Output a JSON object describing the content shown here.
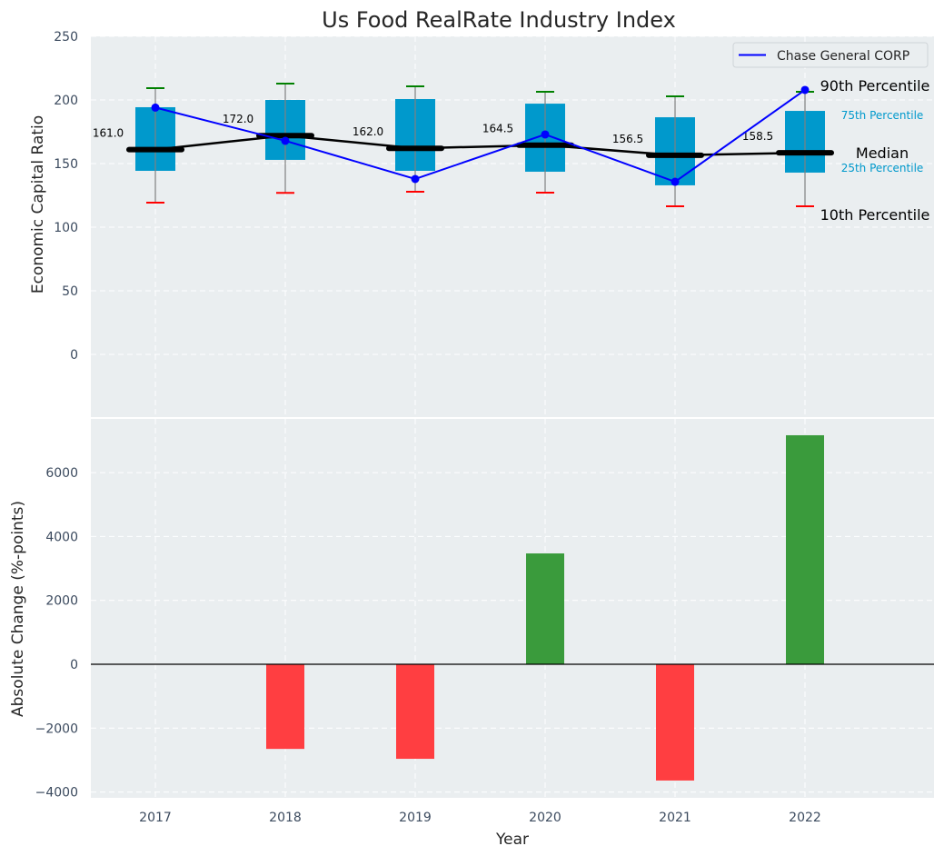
{
  "chart_data": [
    {
      "type": "box",
      "title": "Us Food RealRate Industry Index",
      "xlabel": "",
      "ylabel": "Economic Capital Ratio",
      "ylim": [
        -50,
        250
      ],
      "yticks": [
        0,
        50,
        100,
        150,
        200,
        250
      ],
      "grid": true,
      "categories": [
        "2017",
        "2018",
        "2019",
        "2020",
        "2021",
        "2022"
      ],
      "percentiles": {
        "p10": [
          119.3,
          127.0,
          127.9,
          127.1,
          116.4,
          116.4
        ],
        "p25": [
          144.3,
          152.9,
          144.3,
          143.6,
          132.9,
          142.9
        ],
        "median": [
          161.0,
          172.0,
          162.0,
          164.5,
          156.5,
          158.5
        ],
        "p75": [
          194.3,
          200.0,
          200.7,
          197.1,
          186.4,
          191.4
        ],
        "p90": [
          209.3,
          212.9,
          210.7,
          206.4,
          202.9,
          206.4
        ]
      },
      "median_labels": [
        "161.0",
        "172.0",
        "162.0",
        "164.5",
        "156.5",
        "158.5"
      ],
      "series": [
        {
          "name": "Chase General CORP",
          "color": "#0000ff",
          "values": [
            194.0,
            167.9,
            137.9,
            172.9,
            135.7,
            207.9
          ]
        }
      ],
      "annotations": {
        "p90": "90th Percentile",
        "p75": "75th Percentile",
        "median": "Median",
        "p25": "25th Percentile",
        "p10": "10th Percentile"
      },
      "legend": {
        "placement": "top-right",
        "entries": [
          "Chase General CORP"
        ]
      },
      "colors": {
        "box": "#0099cc",
        "median": "#000000",
        "p90_cap": "#008000",
        "p10_cap": "#ff0000",
        "annotation_blue": "#0099cc"
      }
    },
    {
      "type": "bar",
      "xlabel": "Year",
      "ylabel": "Absolute Change (%-points)",
      "ylim": [
        -4200,
        7700
      ],
      "yticks": [
        -4000,
        -2000,
        0,
        2000,
        4000,
        6000
      ],
      "ytick_labels": [
        "−4000",
        "−2000",
        "0",
        "2000",
        "4000",
        "6000"
      ],
      "grid": true,
      "categories": [
        "2017",
        "2018",
        "2019",
        "2020",
        "2021",
        "2022"
      ],
      "values": [
        0,
        -2650,
        -2960,
        3470,
        -3640,
        7170
      ],
      "colors": {
        "positive": "#3a9b3c",
        "negative": "#ff3e41"
      }
    }
  ]
}
